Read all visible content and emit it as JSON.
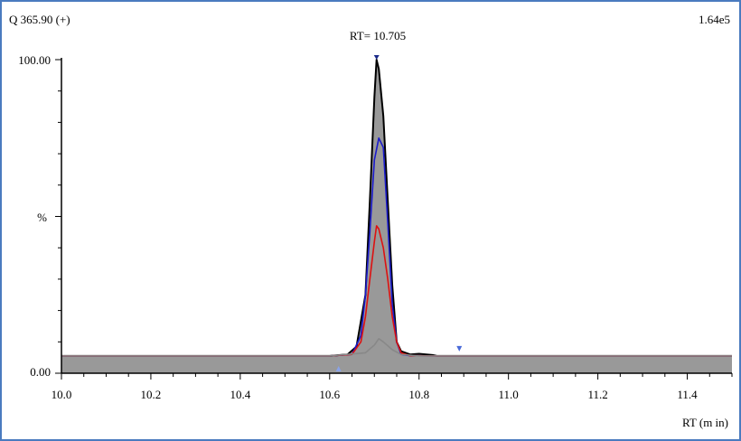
{
  "header": {
    "mass_label": "Q 365.90 (+)",
    "intensity": "1.64e5",
    "rt_annotation": "RT= 10.705"
  },
  "chart_data": {
    "type": "line",
    "xlabel": "RT (m in)",
    "ylabel": "%",
    "xlim": [
      10.0,
      11.5
    ],
    "ylim": [
      0,
      100
    ],
    "x_ticks": [
      "10.0",
      "10.2",
      "10.4",
      "10.6",
      "10.8",
      "11.0",
      "11.2",
      "11.4"
    ],
    "y_tick_labels": [
      "0.00",
      "100.00"
    ],
    "peak_rt": 10.705,
    "integration_markers": {
      "start": 10.62,
      "end": 10.89
    },
    "series": [
      {
        "color": "#000000",
        "fill": "#999999",
        "x": [
          10.0,
          10.6,
          10.64,
          10.66,
          10.68,
          10.69,
          10.7,
          10.705,
          10.71,
          10.72,
          10.73,
          10.74,
          10.75,
          10.76,
          10.78,
          10.8,
          10.83,
          10.84,
          11.0,
          11.5
        ],
        "y": [
          5.5,
          5.5,
          6.0,
          8.5,
          25.0,
          55.0,
          88.0,
          100.0,
          97.0,
          82.0,
          55.0,
          28.0,
          10.0,
          7.0,
          6.0,
          6.2,
          5.8,
          5.5,
          5.5,
          5.5
        ]
      },
      {
        "color": "#1a1acc",
        "x": [
          10.0,
          10.6,
          10.65,
          10.67,
          10.68,
          10.69,
          10.7,
          10.71,
          10.72,
          10.73,
          10.74,
          10.75,
          10.76,
          10.78,
          10.84,
          11.0,
          11.5
        ],
        "y": [
          5.5,
          5.5,
          6.0,
          12.0,
          25.0,
          45.0,
          68.0,
          75.0,
          72.0,
          48.0,
          22.0,
          10.0,
          6.0,
          5.6,
          5.5,
          5.5,
          5.5
        ]
      },
      {
        "color": "#dd1111",
        "x": [
          10.0,
          10.6,
          10.65,
          10.67,
          10.68,
          10.69,
          10.7,
          10.705,
          10.71,
          10.72,
          10.73,
          10.74,
          10.75,
          10.76,
          10.78,
          10.84,
          11.0,
          11.5
        ],
        "y": [
          5.5,
          5.5,
          6.0,
          10.0,
          18.0,
          30.0,
          42.0,
          47.0,
          46.0,
          40.0,
          30.0,
          18.0,
          10.0,
          6.5,
          5.6,
          5.5,
          5.5,
          5.5
        ]
      },
      {
        "color": "#888888",
        "x": [
          10.0,
          10.6,
          10.68,
          10.7,
          10.71,
          10.72,
          10.74,
          10.76,
          10.8,
          11.5
        ],
        "y": [
          5.5,
          5.5,
          6.5,
          9.0,
          11.0,
          10.0,
          7.5,
          6.0,
          5.5,
          5.5
        ]
      }
    ]
  }
}
